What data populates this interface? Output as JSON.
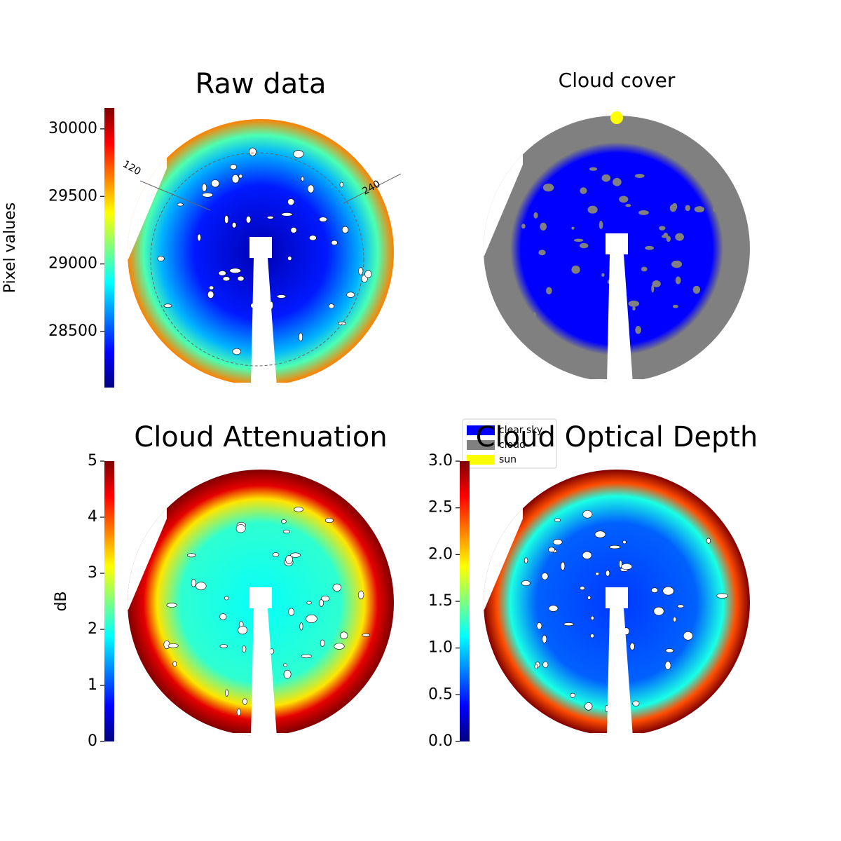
{
  "chart_data": [
    {
      "type": "image",
      "title": "Raw data",
      "ylabel": "Pixel values",
      "colormap": "jet",
      "ylim": [
        28085,
        30155
      ],
      "yticks": [
        28500,
        29000,
        29500,
        30000
      ],
      "annotations": [
        "120",
        "240"
      ]
    },
    {
      "type": "categorical-image",
      "title": "Cloud cover",
      "legend": [
        {
          "name": "clear sky",
          "color": "#0000ff"
        },
        {
          "name": "cloud",
          "color": "#808080"
        },
        {
          "name": "sun",
          "color": "#ffff00"
        }
      ]
    },
    {
      "type": "image",
      "title": "Cloud Attenuation",
      "ylabel": "dB",
      "colormap": "jet",
      "ylim": [
        0,
        5
      ],
      "yticks": [
        0,
        1,
        2,
        3,
        4,
        5
      ]
    },
    {
      "type": "image",
      "title": "Cloud Optical Depth",
      "colormap": "jet",
      "ylim": [
        0,
        3
      ],
      "yticks": [
        {
          "value": 0,
          "label": "0.0"
        },
        0.5,
        {
          "value": 1,
          "label": "1.0"
        },
        1.5,
        {
          "value": 2,
          "label": "2.0"
        },
        2.5,
        {
          "value": 3,
          "label": "3.0"
        }
      ]
    }
  ]
}
